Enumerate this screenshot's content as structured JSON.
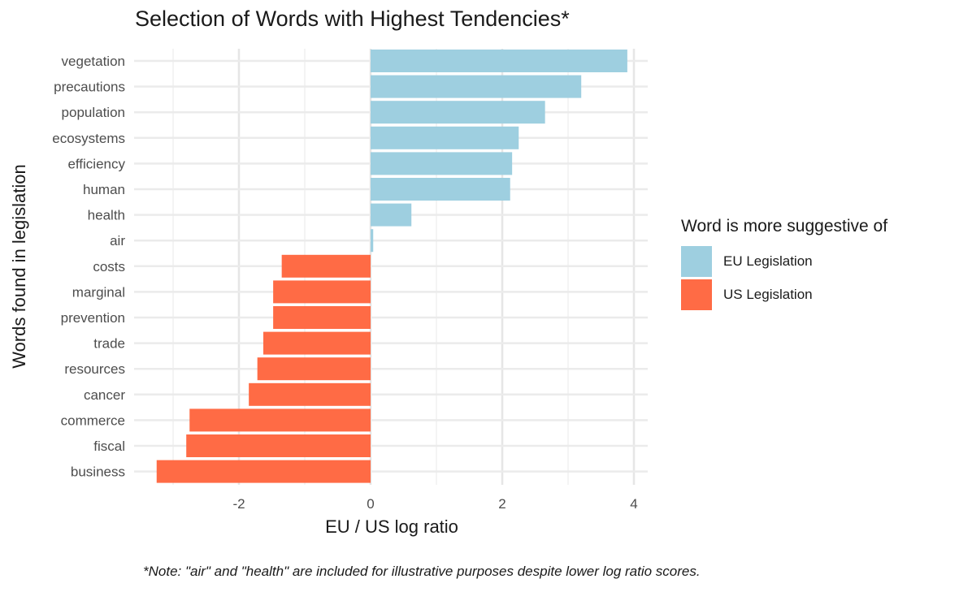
{
  "chart_data": {
    "type": "bar",
    "orientation": "horizontal",
    "title": "Selection of Words with Highest Tendencies*",
    "xlabel": "EU / US log ratio",
    "ylabel": "Words found in legislation",
    "xlim": [
      -3.5,
      4.2
    ],
    "xticks": [
      -2,
      0,
      2,
      4
    ],
    "xtick_labels": [
      "-2",
      "0",
      "2",
      "4"
    ],
    "grid": true,
    "legend_title": "Word is more suggestive of",
    "legend_position": "right",
    "categories": [
      "vegetation",
      "precautions",
      "population",
      "ecosystems",
      "efficiency",
      "human",
      "health",
      "air",
      "costs",
      "marginal",
      "prevention",
      "trade",
      "resources",
      "cancer",
      "commerce",
      "fiscal",
      "business"
    ],
    "values": [
      3.9,
      3.2,
      2.65,
      2.25,
      2.15,
      2.12,
      0.62,
      0.04,
      -1.35,
      -1.48,
      -1.48,
      -1.63,
      -1.72,
      -1.85,
      -2.75,
      -2.8,
      -3.25
    ],
    "groups": [
      "EU Legislation",
      "EU Legislation",
      "EU Legislation",
      "EU Legislation",
      "EU Legislation",
      "EU Legislation",
      "EU Legislation",
      "EU Legislation",
      "US Legislation",
      "US Legislation",
      "US Legislation",
      "US Legislation",
      "US Legislation",
      "US Legislation",
      "US Legislation",
      "US Legislation",
      "US Legislation"
    ],
    "series": [
      {
        "name": "EU Legislation",
        "color": "#9ECFE0"
      },
      {
        "name": "US Legislation",
        "color": "#FF6B45"
      }
    ],
    "note": "*Note: \"air\" and \"health\" are included for illustrative purposes despite lower log ratio scores."
  }
}
